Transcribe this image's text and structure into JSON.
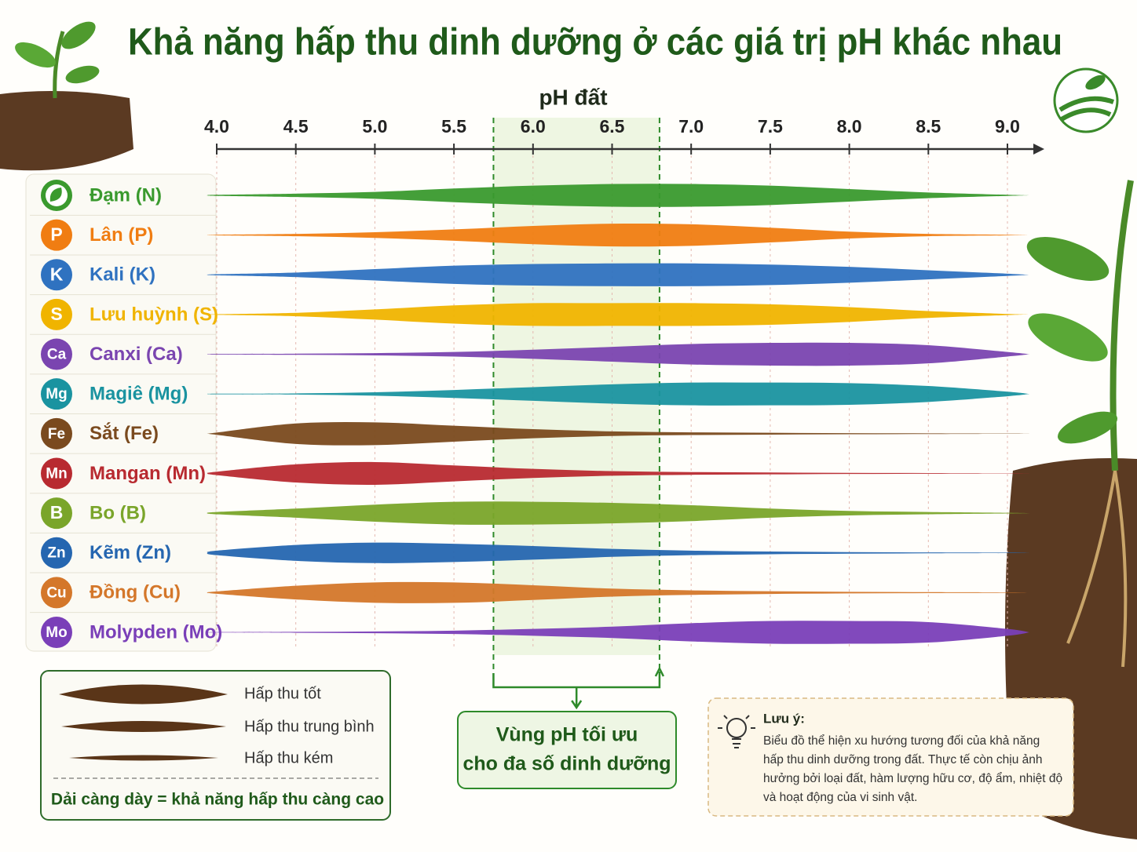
{
  "chart_data": {
    "type": "band",
    "title": "Khả năng hấp thu dinh dưỡng ở các giá trị pH khác nhau",
    "x_label": "pH đất",
    "xlim": [
      4,
      9
    ],
    "xticks": [
      {
        "value": 4,
        "label": "4.0"
      },
      4.5,
      {
        "value": 5,
        "label": "5.0"
      },
      5.5,
      {
        "value": 6,
        "label": "6.0"
      },
      6.5,
      {
        "value": 7,
        "label": "7.0"
      },
      7.5,
      {
        "value": 8,
        "label": "8.0"
      },
      8.5,
      {
        "value": 9,
        "label": "9.0"
      }
    ],
    "x": [
      4,
      4.5,
      5,
      5.5,
      6,
      6.5,
      7,
      7.5,
      8,
      8.5,
      9
    ],
    "grid": true,
    "series": [
      {
        "name": "Đạm (N)",
        "color": "#3a9a2e",
        "values": [
          0.5,
          1.5,
          3,
          6,
          8.5,
          10,
          10,
          8.5,
          5.5,
          2.5,
          0.5
        ]
      },
      {
        "name": "Lân (P)",
        "symbol": "P",
        "color": "#f07d12",
        "values": [
          0.3,
          1,
          2.5,
          5,
          8,
          10,
          9.5,
          6.5,
          3,
          1,
          0.3
        ]
      },
      {
        "name": "Kali (K)",
        "symbol": "K",
        "color": "#2f72c0",
        "values": [
          0.5,
          2,
          5,
          8,
          9.5,
          10,
          10,
          9,
          7,
          4,
          1
        ]
      },
      {
        "name": "Lưu huỳnh (S)",
        "symbol": "S",
        "color": "#f0b400",
        "values": [
          0.3,
          1.5,
          4.5,
          8,
          10,
          10,
          10,
          9,
          6.5,
          3,
          0.5
        ]
      },
      {
        "name": "Canxi (Ca)",
        "symbol": "Ca",
        "color": "#7a45b0",
        "values": [
          0.3,
          0.5,
          1,
          2,
          4,
          6.5,
          9,
          10,
          10,
          8,
          2
        ]
      },
      {
        "name": "Magiê (Mg)",
        "symbol": "Mg",
        "color": "#1a93a0",
        "values": [
          0.3,
          0.5,
          1.5,
          3.5,
          6,
          8.5,
          10,
          10,
          9.5,
          7,
          2
        ]
      },
      {
        "name": "Sắt (Fe)",
        "symbol": "Fe",
        "color": "#7a4a1e",
        "values": [
          1,
          9,
          10,
          7,
          4,
          2,
          1.2,
          0.8,
          0.5,
          0.3,
          0.1
        ]
      },
      {
        "name": "Mangan (Mn)",
        "symbol": "Mn",
        "color": "#b82a30",
        "values": [
          1.5,
          8,
          10,
          7,
          4,
          2,
          1.2,
          0.8,
          0.5,
          0.3,
          0.1
        ]
      },
      {
        "name": "Bo (B)",
        "symbol": "B",
        "color": "#7aa52a",
        "values": [
          1,
          4,
          7.5,
          10,
          10,
          9,
          7,
          4,
          2,
          1,
          0.3
        ]
      },
      {
        "name": "Kẽm (Zn)",
        "symbol": "Zn",
        "color": "#2566b0",
        "values": [
          2,
          7,
          9,
          8,
          6,
          3.5,
          2,
          1.2,
          0.7,
          0.4,
          0.2
        ]
      },
      {
        "name": "Đồng (Cu)",
        "symbol": "Cu",
        "color": "#d4772a",
        "values": [
          1,
          6,
          9,
          9,
          6.5,
          3.5,
          2,
          1.2,
          0.7,
          0.4,
          0.2
        ]
      },
      {
        "name": "Molypden (Mo)",
        "symbol": "Mo",
        "color": "#7a3fb8",
        "values": [
          0.2,
          0.4,
          0.8,
          1.5,
          3,
          5,
          8,
          10,
          10,
          9,
          3
        ]
      }
    ],
    "optimal_zone": {
      "range": [
        5.75,
        6.8
      ],
      "label_lines": [
        "Vùng pH tối ưu",
        "cho đa số dinh dưỡng"
      ]
    },
    "legend": {
      "items": [
        "Hấp thu tốt",
        "Hấp thu trung bình",
        "Hấp thu kém"
      ],
      "note": "Dải càng dày = khả năng hấp thu càng cao"
    },
    "note": {
      "title": "Lưu ý:",
      "lines": [
        "Biểu đồ thể hiện xu hướng tương đối của khả năng",
        "hấp thu dinh dưỡng trong đất. Thực tế còn chịu ảnh",
        "hưởng bởi loại đất, hàm lượng hữu cơ, độ ẩm, nhiệt độ",
        "và hoạt động của vi sinh vật."
      ]
    }
  }
}
